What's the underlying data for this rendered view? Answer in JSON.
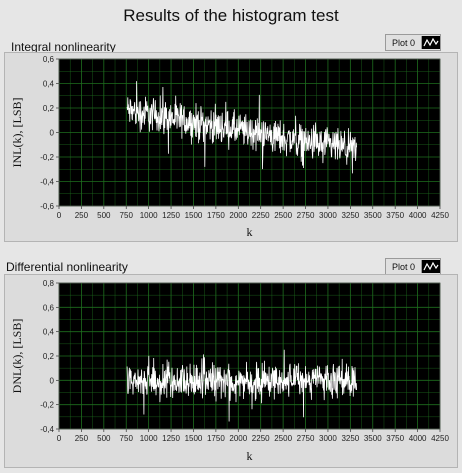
{
  "window": {
    "title": "Results of the histogram test"
  },
  "chart_data": [
    {
      "type": "line",
      "title": "Integral nonlinearity",
      "legend": {
        "label": "Plot 0"
      },
      "series": [
        {
          "name": "Plot 0",
          "color": "#ffffff"
        }
      ],
      "xlabel": "k",
      "ylabel": "INL(k), [LSB]",
      "xlim": [
        0,
        4250
      ],
      "ylim": [
        -0.6,
        0.6
      ],
      "data_x_range": [
        760,
        3320
      ],
      "trend": {
        "start": 0.18,
        "end": -0.15,
        "noise": 0.13
      },
      "x_ticks": [
        "0",
        "250",
        "500",
        "750",
        "1000",
        "1250",
        "1500",
        "1750",
        "2000",
        "2250",
        "2500",
        "2750",
        "3000",
        "3250",
        "3500",
        "3750",
        "4000",
        "4250"
      ],
      "y_ticks": [
        "0,6",
        "0,4",
        "0,2",
        "0",
        "-0,2",
        "-0,4",
        "-0,6"
      ],
      "grid": true,
      "background": "#000000",
      "grid_color": "#1e6e1e"
    },
    {
      "type": "line",
      "title": "Differential nonlinearity",
      "legend": {
        "label": "Plot 0"
      },
      "series": [
        {
          "name": "Plot 0",
          "color": "#ffffff"
        }
      ],
      "xlabel": "k",
      "ylabel": "DNL(k), [LSB]",
      "xlim": [
        0,
        4250
      ],
      "ylim": [
        -0.4,
        0.8
      ],
      "data_x_range": [
        760,
        3320
      ],
      "trend": {
        "start": 0.0,
        "end": 0.0,
        "noise": 0.12
      },
      "x_ticks": [
        "0",
        "250",
        "500",
        "750",
        "1000",
        "1250",
        "1500",
        "1750",
        "2000",
        "2250",
        "2500",
        "2750",
        "3000",
        "3250",
        "3500",
        "3750",
        "4000",
        "4250"
      ],
      "y_ticks": [
        "0,8",
        "0,6",
        "0,4",
        "0,2",
        "0",
        "-0,2",
        "-0,4"
      ],
      "grid": true,
      "background": "#000000",
      "grid_color": "#1e6e1e"
    }
  ]
}
